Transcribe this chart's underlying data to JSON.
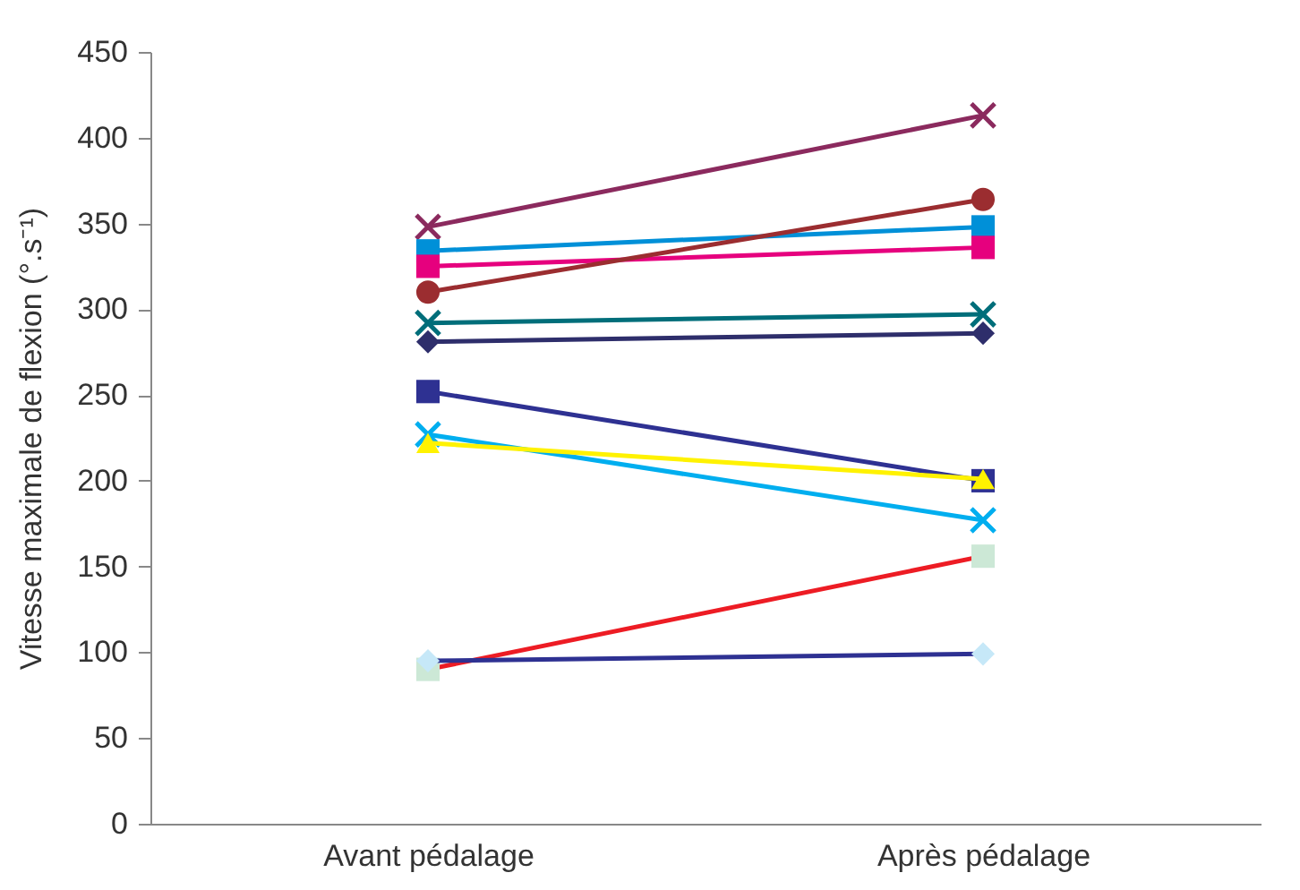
{
  "chart_data": {
    "type": "line",
    "ylabel": "Vitesse maximale de flexion (°.s⁻¹)",
    "categories": [
      "Avant pédalage",
      "Après pédalage"
    ],
    "ylim": [
      0,
      450
    ],
    "yticks": [
      0,
      50,
      100,
      150,
      200,
      250,
      300,
      350,
      400,
      450
    ],
    "grid": false,
    "series": [
      {
        "color": "#8b2a5e",
        "marker": "cross",
        "values": [
          348,
          413
        ]
      },
      {
        "color": "#0090d8",
        "marker": "square",
        "values": [
          334,
          348
        ]
      },
      {
        "color": "#e6007e",
        "marker": "square",
        "values": [
          325,
          336
        ]
      },
      {
        "color": "#9b2d30",
        "marker": "circle",
        "values": [
          310,
          364
        ]
      },
      {
        "color": "#006e7a",
        "marker": "cross",
        "values": [
          292,
          297
        ]
      },
      {
        "color": "#2e2e6b",
        "marker": "diamond",
        "values": [
          281,
          286
        ]
      },
      {
        "color": "#2e3192",
        "marker": "square",
        "values": [
          252,
          200
        ]
      },
      {
        "color": "#00aeef",
        "marker": "cross",
        "values": [
          227,
          177
        ]
      },
      {
        "color": "#fff200",
        "marker": "triangle",
        "values": [
          222,
          201
        ]
      },
      {
        "color": "#ed1c24",
        "marker": "square",
        "colors": [
          "#cce8d6",
          "#cce8d6"
        ],
        "values": [
          90,
          156
        ]
      },
      {
        "color": "#2e3192",
        "marker": "diamond",
        "colors": [
          "#c6e8f8",
          "#c6e8f8"
        ],
        "values": [
          95,
          99
        ]
      }
    ]
  }
}
